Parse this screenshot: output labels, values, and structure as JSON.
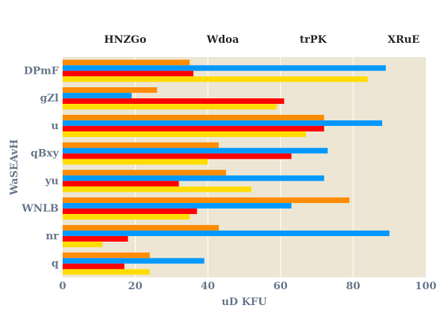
{
  "chart_data": {
    "type": "bar",
    "orientation": "horizontal",
    "categories": [
      "DPmF",
      "gZl",
      "u",
      "qBxy",
      "yu",
      "WNLB",
      "nr",
      "q"
    ],
    "series": [
      {
        "name": "HNZGo",
        "color": "#ff8c00",
        "values": [
          35,
          26,
          72,
          43,
          45,
          79,
          43,
          24
        ]
      },
      {
        "name": "Wdoa",
        "color": "#0099ff",
        "values": [
          89,
          19,
          88,
          73,
          72,
          63,
          90,
          39
        ]
      },
      {
        "name": "trPK",
        "color": "#ff0000",
        "values": [
          36,
          61,
          72,
          63,
          32,
          37,
          18,
          17
        ]
      },
      {
        "name": "XRuE",
        "color": "#ffdd00",
        "values": [
          84,
          59,
          67,
          40,
          52,
          35,
          11,
          24
        ]
      }
    ],
    "xlabel": "uD KFU",
    "ylabel": "WaSEAvH",
    "xlim": [
      0,
      100
    ],
    "xticks": [
      0,
      20,
      40,
      60,
      80,
      100
    ],
    "grid": true,
    "legend_position": "top",
    "plot_background": "#ede6d4"
  }
}
